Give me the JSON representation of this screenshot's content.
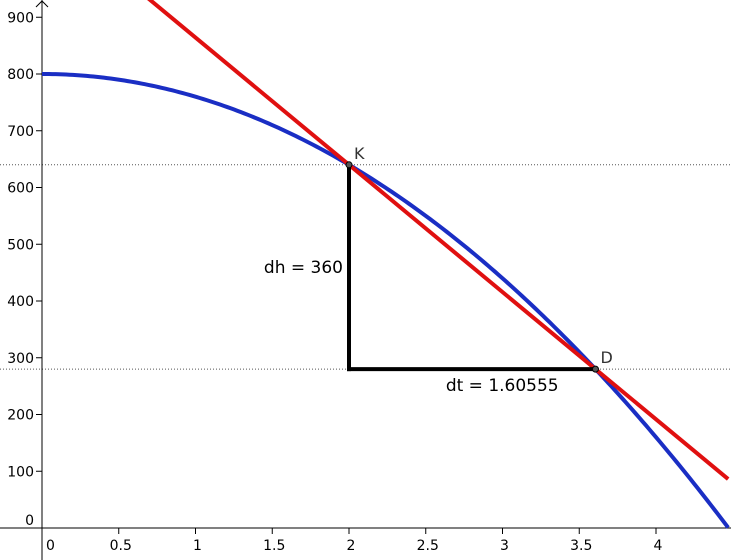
{
  "chart_data": {
    "type": "line",
    "title": "",
    "xlabel": "",
    "ylabel": "",
    "xlim": [
      -0.06,
      4.45
    ],
    "ylim": [
      -25,
      928
    ],
    "x_ticks": [
      {
        "value": 0,
        "label": "0"
      },
      {
        "value": 0.5,
        "label": "0.5"
      },
      {
        "value": 1,
        "label": "1"
      },
      {
        "value": 1.5,
        "label": "1.5"
      },
      {
        "value": 2,
        "label": "2"
      },
      {
        "value": 2.5,
        "label": "2.5"
      },
      {
        "value": 3,
        "label": "3"
      },
      {
        "value": 3.5,
        "label": "3.5"
      },
      {
        "value": 4,
        "label": "4"
      }
    ],
    "y_ticks": [
      {
        "value": 0,
        "label": "0"
      },
      {
        "value": 100,
        "label": "100"
      },
      {
        "value": 200,
        "label": "200"
      },
      {
        "value": 300,
        "label": "300"
      },
      {
        "value": 400,
        "label": "400"
      },
      {
        "value": 500,
        "label": "500"
      },
      {
        "value": 600,
        "label": "600"
      },
      {
        "value": 700,
        "label": "700"
      },
      {
        "value": 800,
        "label": "800"
      },
      {
        "value": 900,
        "label": "900"
      }
    ],
    "grid": false,
    "series": [
      {
        "kind": "curve",
        "equation": "h = 800 - 40 t^2",
        "color": "#1a2ec4",
        "t_range": [
          0,
          4.47
        ]
      },
      {
        "kind": "secant-line",
        "through": [
          [
            2,
            640
          ],
          [
            3.60555,
            280
          ]
        ],
        "color": "#e01010",
        "t_range": [
          0.5,
          4.47
        ]
      }
    ],
    "points": [
      {
        "name": "K",
        "x": 2,
        "y": 640
      },
      {
        "name": "D",
        "x": 3.60555,
        "y": 280
      }
    ],
    "reference_lines": [
      {
        "orientation": "horizontal",
        "y": 640,
        "style": "dotted"
      },
      {
        "orientation": "horizontal",
        "y": 280,
        "style": "dotted"
      }
    ],
    "measurements": [
      {
        "label": "dh = 360",
        "from": [
          2,
          640
        ],
        "to": [
          2,
          280
        ]
      },
      {
        "label": "dt = 1.60555",
        "from": [
          2,
          280
        ],
        "to": [
          3.60555,
          280
        ]
      }
    ],
    "colors": {
      "curve": "#1a2ec4",
      "secant": "#e01010",
      "axes": "#000000",
      "triangle": "#000000",
      "dotted": "#555555"
    }
  }
}
